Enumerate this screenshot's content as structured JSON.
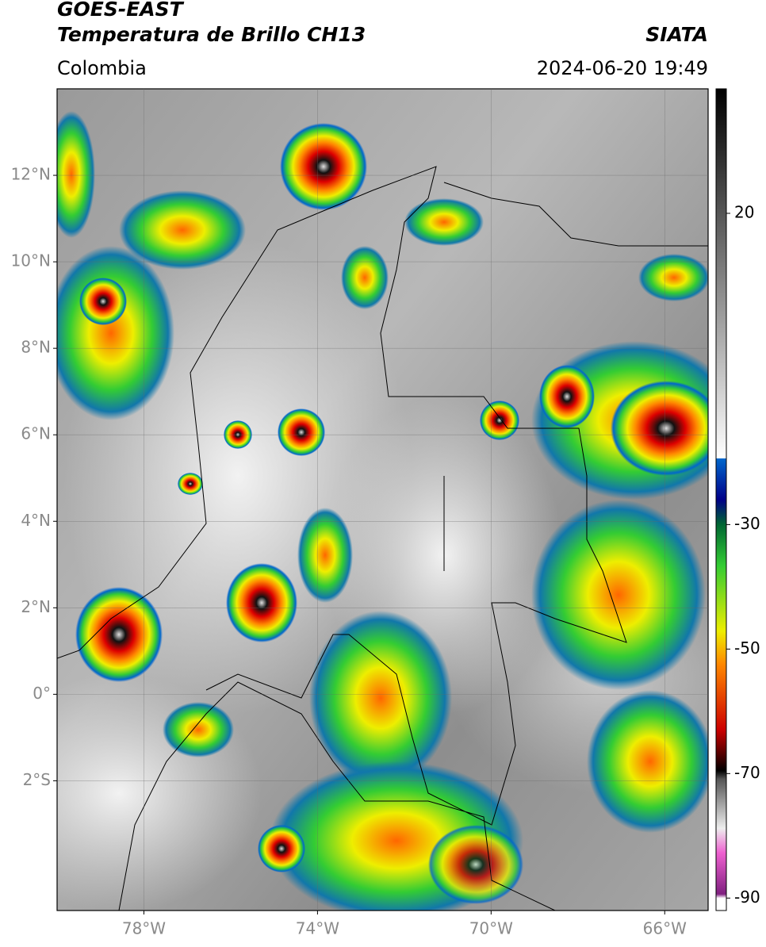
{
  "header": {
    "source": "GOES-EAST",
    "product": "Temperatura de Brillo CH13",
    "region": "Colombia",
    "agency": "SIATA",
    "datetime": "2024-06-20 19:49"
  },
  "map": {
    "latlim": [
      -5,
      14
    ],
    "lonlim": [
      -80,
      -65
    ],
    "lat_ticks": [
      {
        "value": 12,
        "label": "12°N"
      },
      {
        "value": 10,
        "label": "10°N"
      },
      {
        "value": 8,
        "label": "8°N"
      },
      {
        "value": 6,
        "label": "6°N"
      },
      {
        "value": 4,
        "label": "4°N"
      },
      {
        "value": 2,
        "label": "2°N"
      },
      {
        "value": 0,
        "label": "0°"
      },
      {
        "value": -2,
        "label": "2°S"
      }
    ],
    "lon_ticks": [
      {
        "value": -78,
        "label": "78°W"
      },
      {
        "value": -74,
        "label": "74°W"
      },
      {
        "value": -70,
        "label": "70°W"
      },
      {
        "value": -66,
        "label": "66°W"
      }
    ]
  },
  "colorbar": {
    "lim": [
      -92,
      40
    ],
    "ticks": [
      20,
      -30,
      -50,
      -70,
      -90
    ]
  }
}
